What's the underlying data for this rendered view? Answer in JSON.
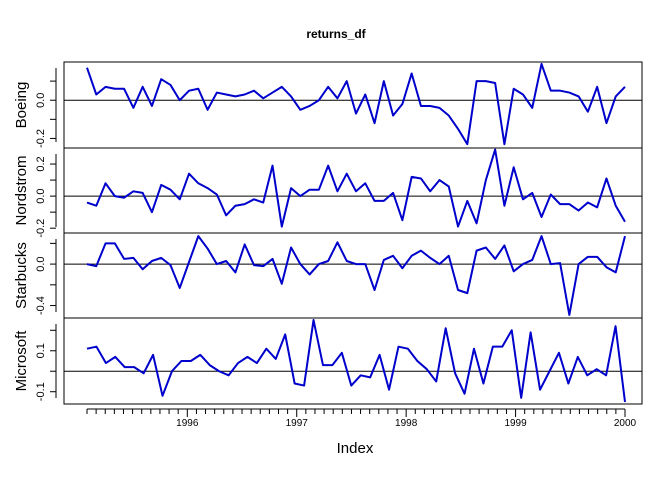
{
  "chart_data": {
    "type": "line",
    "title": "returns_df",
    "xlabel": "Index",
    "x_tick_labels": [
      "1996",
      "1997",
      "1998",
      "1999",
      "2000"
    ],
    "x_tick_years": [
      1996,
      1997,
      1998,
      1999,
      2000
    ],
    "x_start": "1995-02",
    "x_end": "2000-01",
    "line_color": "#0000cc",
    "ref_line_color": "#000000",
    "reference_value": 0,
    "series": [
      {
        "name": "Boeing",
        "ylim": [
          -0.25,
          0.2
        ],
        "yticks": [
          -0.2,
          0.0
        ],
        "ytick_labels": [
          "-0.2",
          "0.0"
        ],
        "values": [
          0.17,
          0.03,
          0.07,
          0.06,
          0.06,
          -0.04,
          0.07,
          -0.03,
          0.11,
          0.08,
          0.0,
          0.05,
          0.06,
          -0.05,
          0.04,
          0.03,
          0.02,
          0.03,
          0.05,
          0.01,
          0.04,
          0.07,
          0.02,
          -0.05,
          -0.03,
          0.0,
          0.07,
          0.01,
          0.1,
          -0.07,
          0.03,
          -0.12,
          0.1,
          -0.08,
          -0.02,
          0.14,
          -0.03,
          -0.03,
          -0.04,
          -0.08,
          -0.15,
          -0.23,
          0.1,
          0.1,
          0.09,
          -0.23,
          0.06,
          0.03,
          -0.04,
          0.19,
          0.05,
          0.05,
          0.04,
          0.02,
          -0.06,
          0.07,
          -0.12,
          0.02,
          0.07
        ]
      },
      {
        "name": "Nordstrom",
        "ylim": [
          -0.23,
          0.3
        ],
        "yticks": [
          -0.2,
          0.0,
          0.2
        ],
        "ytick_labels": [
          "-0.2",
          "0.0",
          "0.2"
        ],
        "values": [
          -0.04,
          -0.06,
          0.08,
          0.0,
          -0.01,
          0.03,
          0.02,
          -0.1,
          0.07,
          0.04,
          -0.02,
          0.14,
          0.08,
          0.05,
          0.01,
          -0.12,
          -0.06,
          -0.05,
          -0.02,
          -0.04,
          0.19,
          -0.19,
          0.05,
          0.0,
          0.04,
          0.04,
          0.19,
          0.03,
          0.14,
          0.03,
          0.08,
          -0.03,
          -0.03,
          0.02,
          -0.15,
          0.12,
          0.11,
          0.03,
          0.1,
          0.06,
          -0.19,
          -0.03,
          -0.17,
          0.1,
          0.29,
          -0.06,
          0.18,
          -0.02,
          0.02,
          -0.13,
          0.01,
          -0.05,
          -0.05,
          -0.09,
          -0.04,
          -0.07,
          0.11,
          -0.06,
          -0.16
        ]
      },
      {
        "name": "Starbucks",
        "ylim": [
          -0.52,
          0.3
        ],
        "yticks": [
          -0.4,
          0.0
        ],
        "ytick_labels": [
          "-0.4",
          "0.0"
        ],
        "values": [
          0.0,
          -0.02,
          0.2,
          0.2,
          0.05,
          0.06,
          -0.05,
          0.03,
          0.06,
          -0.01,
          -0.23,
          0.02,
          0.27,
          0.15,
          0.0,
          0.03,
          -0.08,
          0.19,
          -0.01,
          -0.02,
          0.05,
          -0.19,
          0.16,
          0.0,
          -0.1,
          0.0,
          0.03,
          0.21,
          0.03,
          0.0,
          0.0,
          -0.25,
          0.04,
          0.08,
          -0.04,
          0.08,
          0.13,
          0.06,
          0.0,
          0.08,
          -0.25,
          -0.28,
          0.13,
          0.16,
          0.05,
          0.18,
          -0.07,
          0.0,
          0.04,
          0.27,
          0.0,
          0.01,
          -0.49,
          0.0,
          0.07,
          0.07,
          -0.03,
          -0.08,
          0.27
        ]
      },
      {
        "name": "Microsoft",
        "ylim": [
          -0.16,
          0.26
        ],
        "yticks": [
          -0.1,
          0.1
        ],
        "ytick_labels": [
          "-0.1",
          "0.1"
        ],
        "values": [
          0.11,
          0.12,
          0.04,
          0.07,
          0.02,
          0.02,
          -0.01,
          0.08,
          -0.12,
          0.0,
          0.05,
          0.05,
          0.08,
          0.03,
          0.0,
          -0.02,
          0.04,
          0.07,
          0.04,
          0.11,
          0.06,
          0.18,
          -0.06,
          -0.07,
          0.25,
          0.03,
          0.03,
          0.09,
          -0.07,
          -0.02,
          -0.03,
          0.08,
          -0.09,
          0.12,
          0.11,
          0.05,
          0.01,
          -0.05,
          0.21,
          -0.01,
          -0.11,
          0.11,
          -0.06,
          0.12,
          0.12,
          0.2,
          -0.13,
          0.19,
          -0.09,
          0.0,
          0.09,
          -0.06,
          0.07,
          -0.02,
          0.01,
          -0.02,
          0.22,
          -0.15
        ]
      }
    ]
  }
}
